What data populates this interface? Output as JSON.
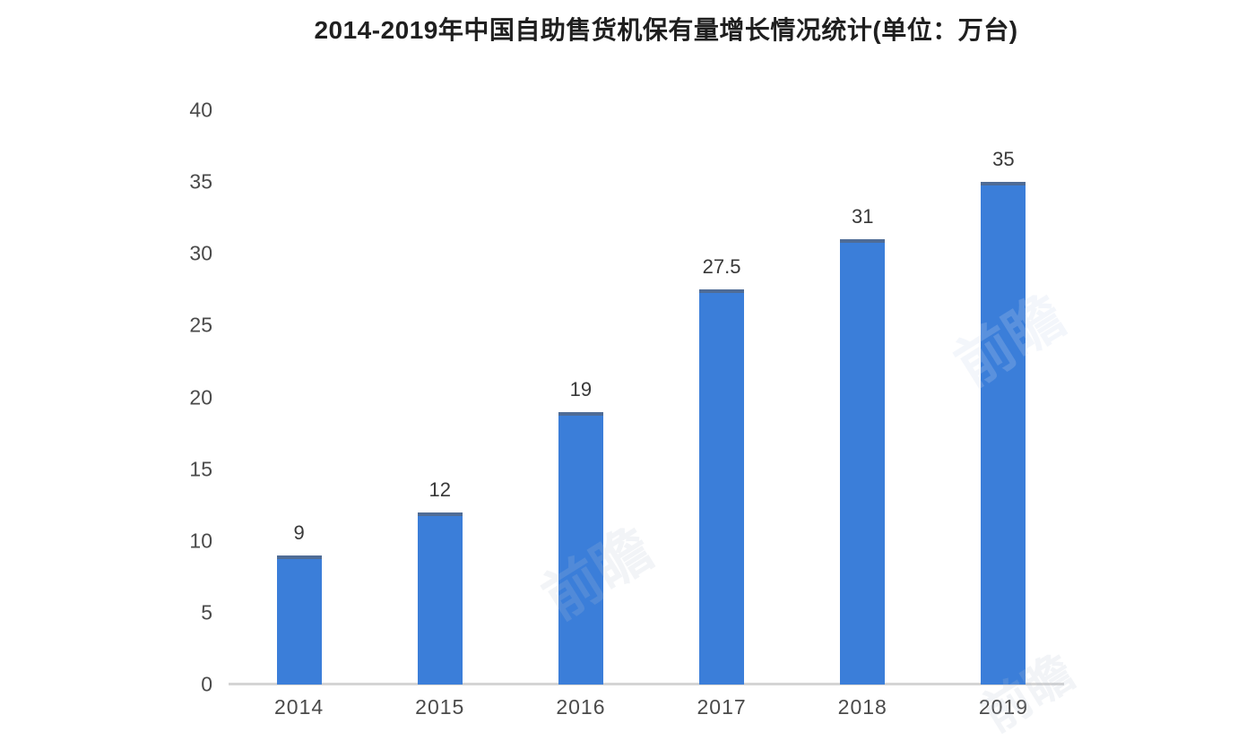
{
  "chart_data": {
    "type": "bar",
    "title": "2014-2019年中国自助售货机保有量增长情况统计(单位：万台)",
    "categories": [
      "2014",
      "2015",
      "2016",
      "2017",
      "2018",
      "2019"
    ],
    "values": [
      9,
      12,
      19,
      27.5,
      31,
      35
    ],
    "value_labels": [
      "9",
      "12",
      "19",
      "27.5",
      "31",
      "35"
    ],
    "xlabel": "",
    "ylabel": "",
    "ylim": [
      0,
      40
    ],
    "yticks": [
      0,
      5,
      10,
      15,
      20,
      25,
      30,
      35,
      40
    ],
    "grid": false,
    "legend": false,
    "bar_color": "#3b7ed9",
    "bar_edge_color": "#4f6c96",
    "axis_line_color": "#d4d4d4",
    "tick_label_color": "#4a4a4a",
    "value_label_color": "#383838",
    "title_color": "#1f1f1f",
    "background_color": "#ffffff"
  },
  "watermark": {
    "text": "前瞻"
  }
}
